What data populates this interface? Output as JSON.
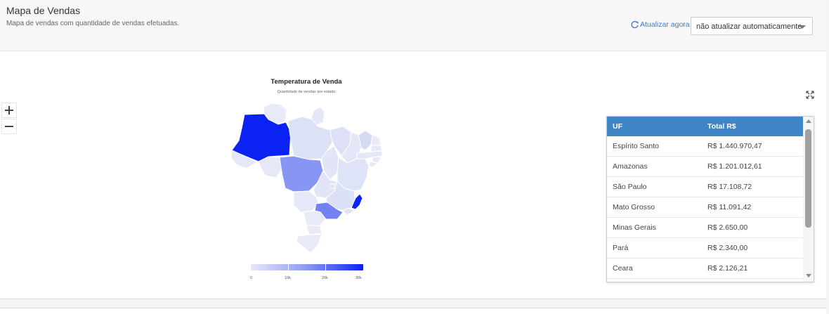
{
  "header": {
    "title": "Mapa de Vendas",
    "subtitle": "Mapa de vendas com quantidade de vendas efetuadas.",
    "refresh_label": "Atualizar agora",
    "auto_refresh_select": "não atualizar automaticamente"
  },
  "map": {
    "title": "Temperatura de Venda",
    "subtitle": "Quantidade de vendas por estado",
    "zoom_in": "+",
    "zoom_out": "−",
    "legend": {
      "ticks": [
        "0",
        "10k",
        "20k",
        "30k"
      ],
      "color_low": "#e6e8fb",
      "color_high": "#0a22f2"
    }
  },
  "table": {
    "headers": [
      "UF",
      "Total R$"
    ],
    "rows": [
      [
        "Espírito Santo",
        "R$ 1.440.970,47"
      ],
      [
        "Amazonas",
        "R$ 1.201.012,61"
      ],
      [
        "São Paulo",
        "R$ 17.108,72"
      ],
      [
        "Mato Grosso",
        "R$ 11.091,42"
      ],
      [
        "Minas Gerais",
        "R$ 2.650,00"
      ],
      [
        "Pará",
        "R$ 2.340,00"
      ],
      [
        "Ceara",
        "R$ 2.126,21"
      ]
    ]
  },
  "colors": {
    "accent": "#3f86c8",
    "link": "#3a7bd5",
    "map_strong": "#0a22f2",
    "map_medium": "#8796f3"
  }
}
